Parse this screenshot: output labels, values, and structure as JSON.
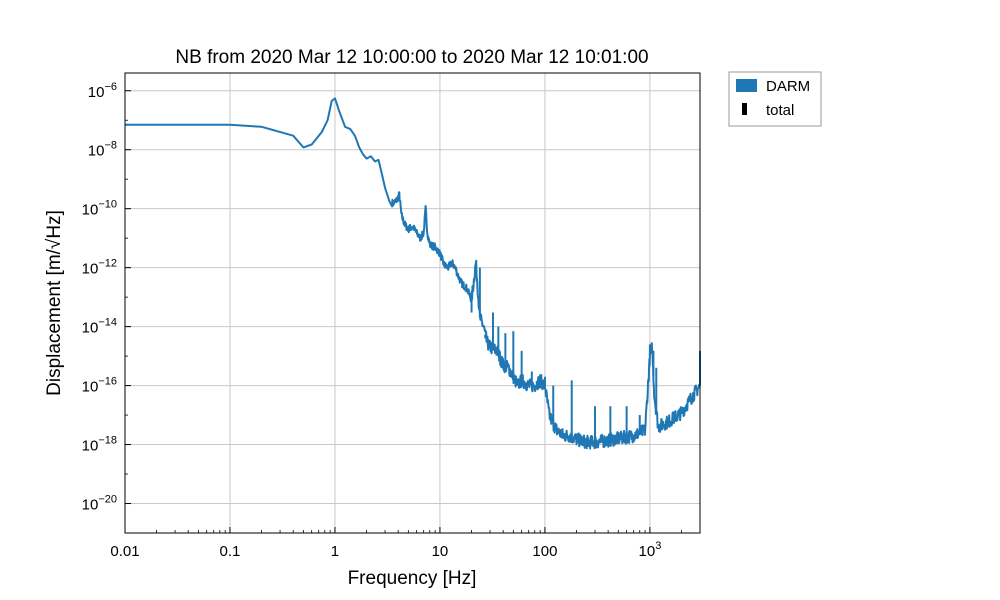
{
  "chart_data": {
    "type": "line",
    "title": "NB from 2020 Mar 12 10:00:00 to 2020 Mar 12 10:01:00",
    "xlabel": "Frequency [Hz]",
    "ylabel": "Displacement [m/√Hz]",
    "xscale": "log",
    "yscale": "log",
    "xlim": [
      0.01,
      3000
    ],
    "ylim": [
      1e-21,
      4e-06
    ],
    "grid": true,
    "legend_position": "outside-upper-right",
    "x_ticks": [
      {
        "value": 0.01,
        "label": "0.01"
      },
      {
        "value": 0.1,
        "label": "0.1"
      },
      {
        "value": 1,
        "label": "1"
      },
      {
        "value": 10,
        "label": "10"
      },
      {
        "value": 100,
        "label": "100"
      },
      {
        "value": 1000,
        "label": "10",
        "sup": "3"
      }
    ],
    "y_ticks": [
      {
        "value": 1e-06,
        "label": "10",
        "sup": "−6"
      },
      {
        "value": 1e-08,
        "label": "10",
        "sup": "−8"
      },
      {
        "value": 1e-10,
        "label": "10",
        "sup": "−10"
      },
      {
        "value": 1e-12,
        "label": "10",
        "sup": "−12"
      },
      {
        "value": 1e-14,
        "label": "10",
        "sup": "−14"
      },
      {
        "value": 1e-16,
        "label": "10",
        "sup": "−16"
      },
      {
        "value": 1e-18,
        "label": "10",
        "sup": "−18"
      },
      {
        "value": 1e-20,
        "label": "10",
        "sup": "−20"
      }
    ],
    "legend": [
      {
        "label": "DARM",
        "color": "#1f77b4",
        "marker": "patch"
      },
      {
        "label": "total",
        "color": "#000000",
        "marker": "bar"
      }
    ],
    "series": [
      {
        "name": "DARM",
        "color": "#1f77b4",
        "x": [
          0.01,
          0.1,
          0.2,
          0.4,
          0.5,
          0.6,
          0.75,
          0.85,
          0.93,
          1.0,
          1.1,
          1.25,
          1.4,
          1.55,
          1.7,
          1.85,
          2.0,
          2.2,
          2.4,
          2.6,
          2.8,
          3.0,
          3.3,
          3.6,
          3.9,
          4.1,
          4.3,
          4.6,
          5.0,
          5.5,
          6.0,
          6.5,
          7.0,
          7.3,
          7.6,
          8.0,
          9.0,
          10,
          11,
          12,
          13,
          14,
          15,
          16,
          18,
          20,
          22,
          24,
          26,
          28,
          30,
          35,
          40,
          45,
          50,
          55,
          60,
          70,
          80,
          90,
          100,
          110,
          120,
          130,
          150,
          170,
          200,
          250,
          300,
          350,
          400,
          500,
          600,
          700,
          800,
          900,
          1000,
          1050,
          1100,
          1200,
          1500,
          2000,
          2500,
          3000
        ],
        "y": [
          7e-08,
          7e-08,
          6e-08,
          3e-08,
          1.2e-08,
          1.5e-08,
          4e-08,
          1e-07,
          4.5e-07,
          5.5e-07,
          2e-07,
          6e-08,
          5e-08,
          3e-08,
          1.2e-08,
          7e-09,
          5e-09,
          6e-09,
          4e-09,
          4.5e-09,
          1.5e-09,
          5e-10,
          1.8e-10,
          1.5e-10,
          2e-10,
          3e-10,
          6e-11,
          3e-11,
          2e-11,
          2.5e-11,
          1.5e-11,
          1e-11,
          1.5e-11,
          1e-10,
          1.5e-11,
          6e-12,
          5e-12,
          3e-12,
          1.2e-12,
          1e-12,
          1.5e-12,
          1e-12,
          5e-13,
          3e-13,
          2e-13,
          8e-14,
          1.5e-12,
          2e-14,
          1e-14,
          3e-15,
          2e-15,
          1.5e-15,
          5e-16,
          4e-16,
          2e-16,
          1e-16,
          1.5e-16,
          1e-16,
          1e-16,
          1.5e-16,
          1e-16,
          1e-17,
          5e-18,
          3e-18,
          2e-18,
          2e-18,
          1.5e-18,
          1.2e-18,
          1.2e-18,
          1.3e-18,
          1.4e-18,
          1.6e-18,
          1.8e-18,
          2e-18,
          2.5e-18,
          3e-18,
          1e-15,
          2e-15,
          5e-17,
          4e-18,
          6e-18,
          1.2e-17,
          4e-17,
          1e-16
        ],
        "spikes": [
          {
            "x": 20,
            "y": 3e-14
          },
          {
            "x": 24,
            "y": 1e-12
          },
          {
            "x": 27,
            "y": 4e-15
          },
          {
            "x": 32,
            "y": 3e-14
          },
          {
            "x": 36,
            "y": 1e-14
          },
          {
            "x": 42,
            "y": 6e-15
          },
          {
            "x": 50,
            "y": 7e-15
          },
          {
            "x": 60,
            "y": 1.5e-15
          },
          {
            "x": 75,
            "y": 3e-16
          },
          {
            "x": 100,
            "y": 2e-16
          },
          {
            "x": 120,
            "y": 1e-16
          },
          {
            "x": 180,
            "y": 1.5e-16
          },
          {
            "x": 300,
            "y": 2e-17
          },
          {
            "x": 420,
            "y": 2e-17
          },
          {
            "x": 600,
            "y": 2e-17
          },
          {
            "x": 800,
            "y": 1e-17
          },
          {
            "x": 1000,
            "y": 2.5e-15
          },
          {
            "x": 1080,
            "y": 1.5e-15
          },
          {
            "x": 1150,
            "y": 4e-16
          },
          {
            "x": 3000,
            "y": 1.5e-15
          }
        ]
      }
    ]
  }
}
